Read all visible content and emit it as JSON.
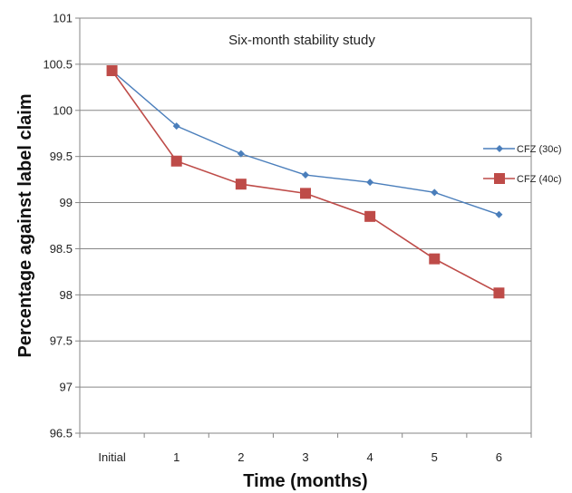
{
  "chart_data": {
    "type": "line",
    "title": "",
    "annotation": "Six-month stability study",
    "xlabel": "Time (months)",
    "ylabel": "Percentage against label claim",
    "categories": [
      "Initial",
      "1",
      "2",
      "3",
      "4",
      "5",
      "6"
    ],
    "ylim": [
      96.5,
      101
    ],
    "yticks": [
      "96.5",
      "97",
      "97.5",
      "98",
      "98.5",
      "99",
      "99.5",
      "100",
      "100.5",
      "101"
    ],
    "grid": true,
    "legend_position": "right",
    "series": [
      {
        "name": "CFZ (30c)",
        "color": "#4a7ebb",
        "marker": "diamond",
        "values": [
          100.43,
          99.83,
          99.53,
          99.3,
          99.22,
          99.11,
          98.87
        ]
      },
      {
        "name": "CFZ (40c)",
        "color": "#be4b48",
        "marker": "square",
        "values": [
          100.43,
          99.45,
          99.2,
          99.1,
          98.85,
          98.39,
          98.02
        ]
      }
    ]
  }
}
